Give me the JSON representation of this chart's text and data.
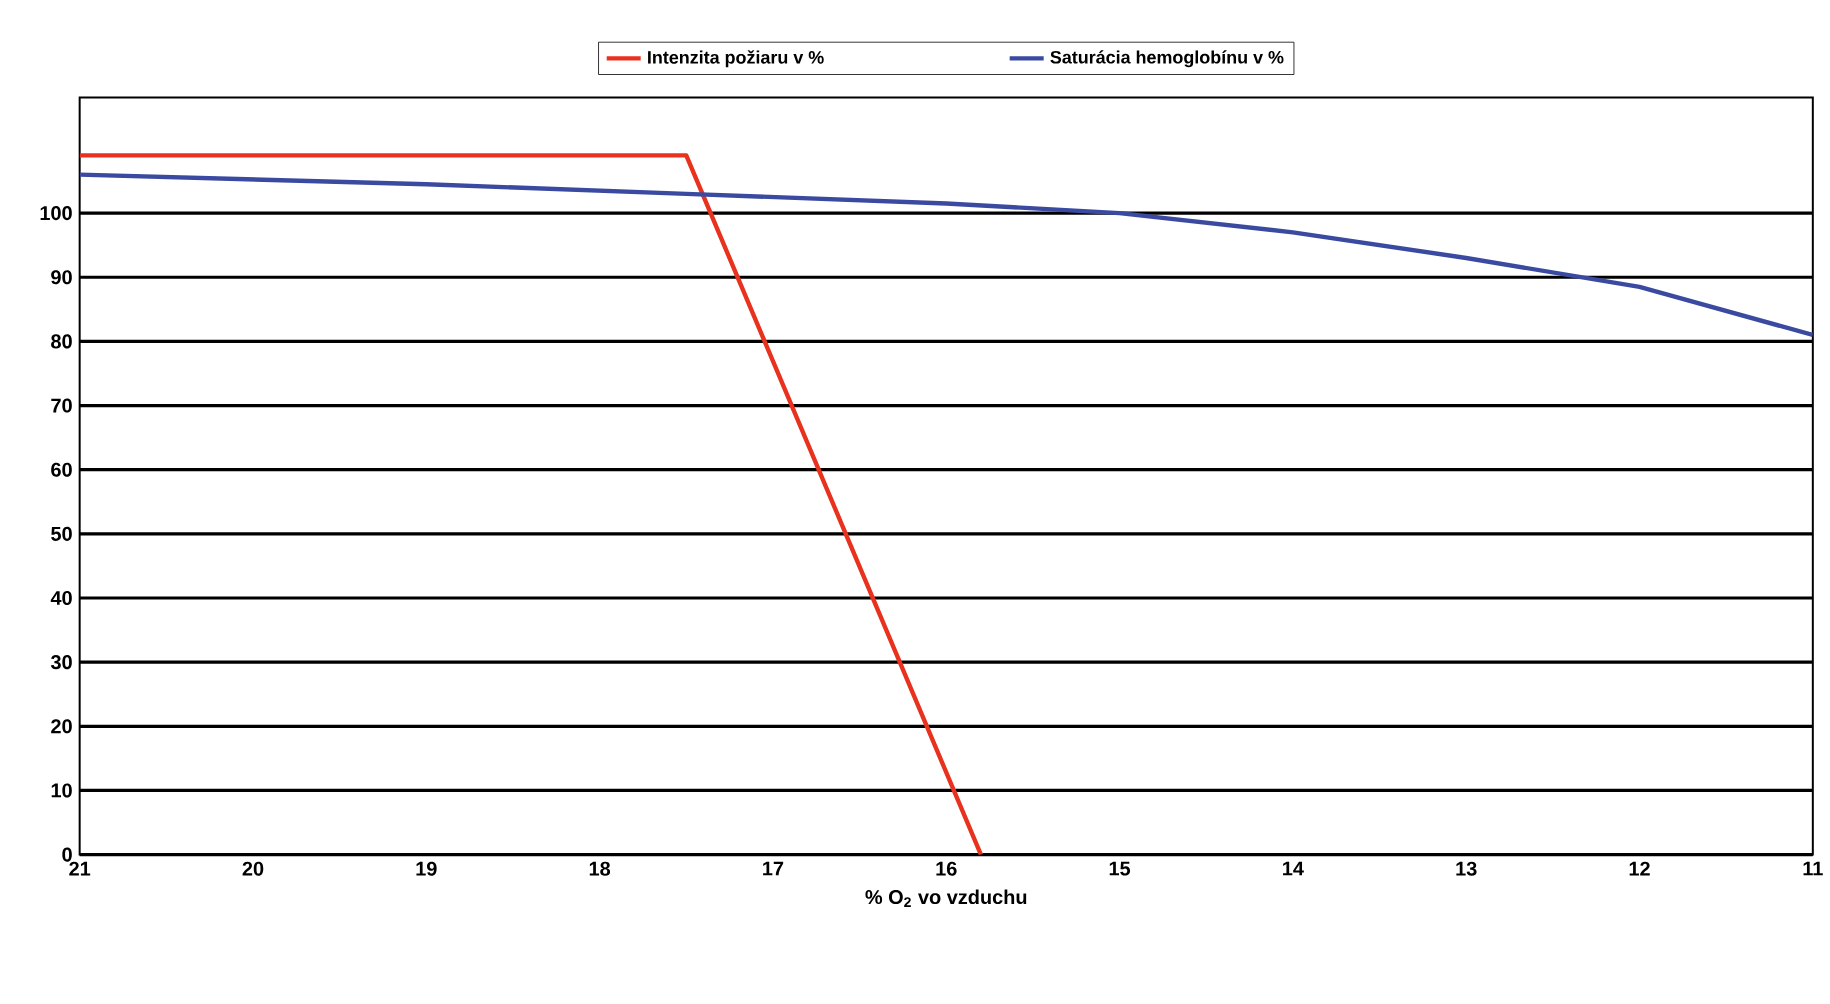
{
  "chart_data": {
    "type": "line",
    "xlabel": "% O$_{2}$ vo vzduchu",
    "xlim": [
      21,
      11
    ],
    "xticks": [
      21,
      20,
      19,
      18,
      17,
      16,
      15,
      14,
      13,
      12,
      11
    ],
    "ylim": [
      0,
      118
    ],
    "yticks": [
      0,
      10,
      20,
      30,
      40,
      50,
      60,
      70,
      80,
      90,
      100
    ],
    "grid": "y",
    "legend": "top",
    "marker": "none",
    "line_style": "solid",
    "series": [
      {
        "name": "Intenzita požiaru v %",
        "color": "#e8321e",
        "x": [
          21,
          17.5,
          15.8
        ],
        "values": [
          109,
          109,
          0
        ]
      },
      {
        "name": "Saturácia hemoglobínu v %",
        "color": "#3a4aa0",
        "x": [
          21,
          19,
          17.5,
          16,
          15,
          14,
          13,
          12,
          11
        ],
        "values": [
          106,
          104.5,
          103,
          101.5,
          100,
          97,
          93,
          88.5,
          81
        ]
      }
    ]
  }
}
